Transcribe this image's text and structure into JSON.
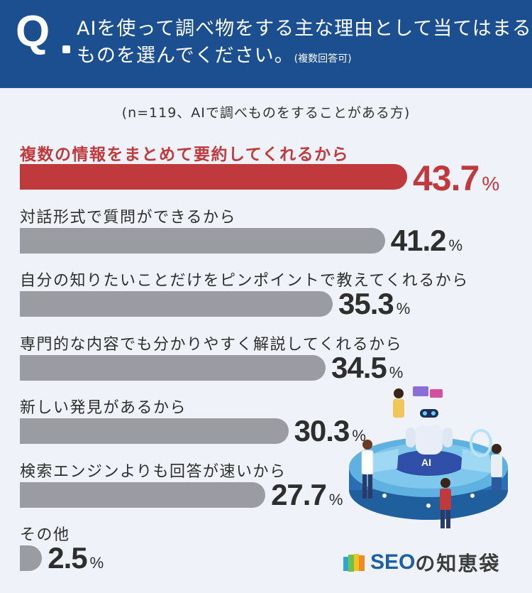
{
  "header": {
    "q_mark": "Q",
    "line1": "AIを使って調べ物をする主な理由として当てはまる",
    "line2": "ものを選んでください。",
    "note": "(複数回答可)"
  },
  "sample_note": "(n=119、AIで調べものをすることがある方)",
  "chart_data": {
    "type": "bar",
    "orientation": "horizontal",
    "unit": "%",
    "categories": [
      "複数の情報をまとめて要約してくれるから",
      "対話形式で質問ができるから",
      "自分の知りたいことだけをピンポイントで教えてくれるから",
      "専門的な内容でも分かりやすく解説してくれるから",
      "新しい発見があるから",
      "検索エンジンよりも回答が速いから",
      "その他"
    ],
    "values": [
      43.7,
      41.2,
      35.3,
      34.5,
      30.3,
      27.7,
      2.5
    ],
    "value_labels": [
      "43.7",
      "41.2",
      "35.3",
      "34.5",
      "30.3",
      "27.7",
      "2.5"
    ],
    "percent_sign": "%",
    "highlight_index": 0,
    "colors": {
      "highlight": "#c0393c",
      "default": "#9b9ca1",
      "text": "#2e2e2e"
    }
  },
  "logo": {
    "seo": "SEO",
    "rest": "の知恵袋",
    "icon": "colored-bars-logo-icon"
  },
  "illustration": {
    "icon": "ai-robot-illustration"
  },
  "colors": {
    "header_bg": "#1b4f8f",
    "panel_bg": "#eff2f8",
    "brand": "#1a5fa8"
  }
}
